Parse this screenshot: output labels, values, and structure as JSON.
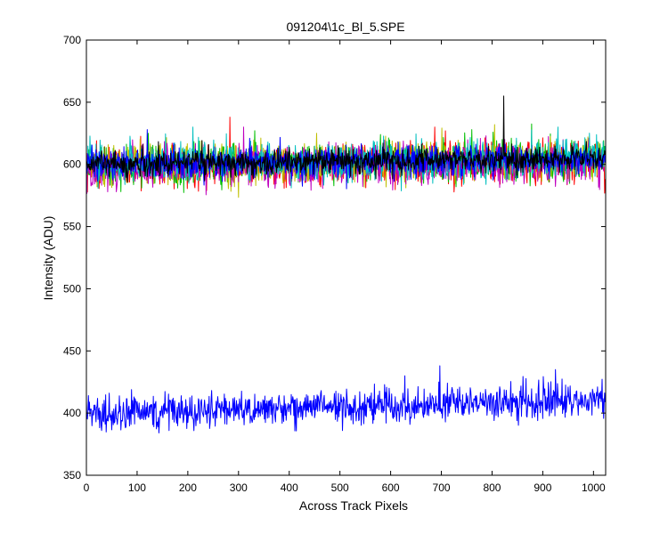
{
  "chart_data": {
    "type": "line",
    "title": "091204\\1c_Bl_5.SPE",
    "xlabel": "Across Track Pixels",
    "ylabel": "Intensity (ADU)",
    "xlim": [
      0,
      1024
    ],
    "ylim": [
      350,
      700
    ],
    "xticks": [
      0,
      100,
      200,
      300,
      400,
      500,
      600,
      700,
      800,
      900,
      1000
    ],
    "yticks": [
      350,
      400,
      450,
      500,
      550,
      600,
      650,
      700
    ],
    "grid": false,
    "legend": "none",
    "series": [
      {
        "color": "#ff0000",
        "n_points": 1024,
        "mean_start": 598,
        "mean_end": 603,
        "noise_std": 8,
        "spikes": [
          {
            "x": 283,
            "y": 638
          },
          {
            "x": 687,
            "y": 630
          }
        ]
      },
      {
        "color": "#00bf00",
        "n_points": 1024,
        "mean_start": 599,
        "mean_end": 604,
        "noise_std": 8,
        "spikes": [
          {
            "x": 760,
            "y": 628
          }
        ]
      },
      {
        "color": "#bfbf00",
        "n_points": 1024,
        "mean_start": 599,
        "mean_end": 605,
        "noise_std": 8,
        "spikes": [
          {
            "x": 805,
            "y": 632
          }
        ]
      },
      {
        "color": "#bf00bf",
        "n_points": 1024,
        "mean_start": 598,
        "mean_end": 602,
        "noise_std": 8,
        "spikes": [
          {
            "x": 310,
            "y": 630
          }
        ]
      },
      {
        "color": "#00bfbf",
        "n_points": 1024,
        "mean_start": 600,
        "mean_end": 606,
        "noise_std": 8,
        "spikes": [
          {
            "x": 210,
            "y": 630
          },
          {
            "x": 930,
            "y": 630
          }
        ]
      },
      {
        "color": "#0000ff",
        "n_points": 1024,
        "mean_start": 600,
        "mean_end": 604,
        "noise_std": 6,
        "spikes": [
          {
            "x": 120,
            "y": 628
          }
        ]
      },
      {
        "color": "#000000",
        "n_points": 1024,
        "mean_start": 600,
        "mean_end": 605,
        "noise_std": 5,
        "spikes": [
          {
            "x": 823,
            "y": 655
          }
        ]
      },
      {
        "color": "#0000ff",
        "n_points": 1024,
        "mean_start": 400,
        "mean_end": 410,
        "noise_std": 7,
        "spikes": [
          {
            "x": 697,
            "y": 438
          },
          {
            "x": 925,
            "y": 435
          },
          {
            "x": 628,
            "y": 430
          },
          {
            "x": 30,
            "y": 386
          },
          {
            "x": 505,
            "y": 386
          }
        ]
      }
    ]
  }
}
